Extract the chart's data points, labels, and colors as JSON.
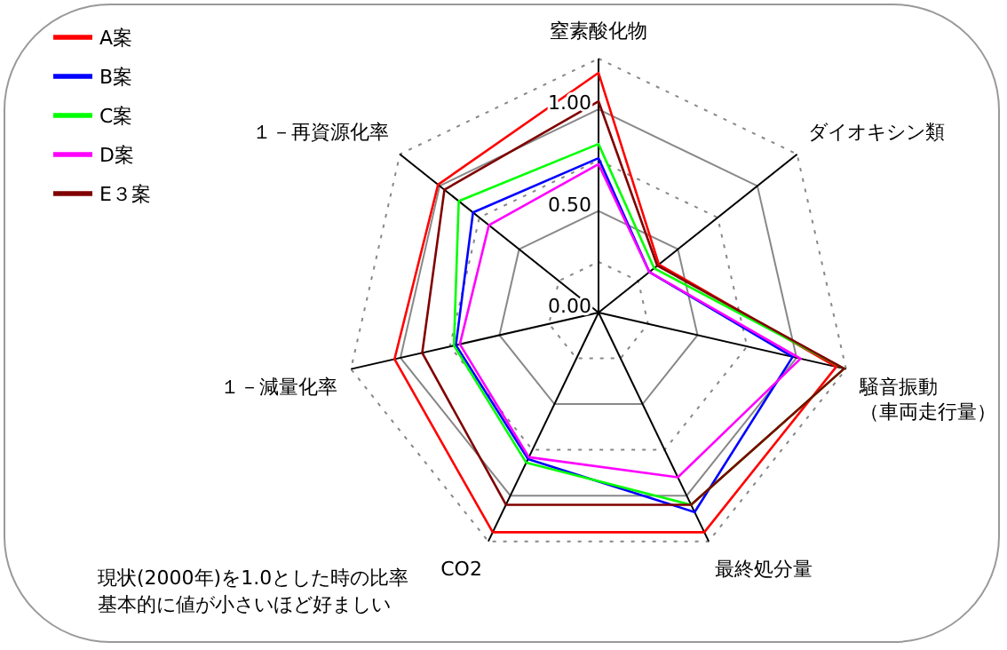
{
  "chart_data": {
    "type": "radar",
    "categories": [
      "窒素酸化物",
      "ダイオキシン類",
      "騒音振動（車両走行量）",
      "最終処分量",
      "CO2",
      "１－減量化率",
      "１－再資源化率"
    ],
    "series": [
      {
        "name": "A案",
        "color": "#ff0000",
        "values": [
          1.18,
          0.38,
          1.2,
          1.2,
          1.2,
          1.03,
          1.01
        ]
      },
      {
        "name": "B案",
        "color": "#0000ff",
        "values": [
          0.76,
          0.32,
          0.98,
          1.09,
          0.8,
          0.72,
          0.79
        ]
      },
      {
        "name": "C案",
        "color": "#00ff00",
        "values": [
          0.83,
          0.35,
          1.24,
          1.05,
          0.82,
          0.73,
          0.88
        ]
      },
      {
        "name": "D案",
        "color": "#ff00ff",
        "values": [
          0.73,
          0.32,
          1.02,
          0.9,
          0.79,
          0.7,
          0.69
        ]
      },
      {
        "name": "E３案",
        "color": "#800000",
        "values": [
          1.04,
          0.37,
          1.24,
          1.05,
          1.05,
          0.89,
          0.97
        ]
      }
    ],
    "ylim": [
      0,
      1.25
    ],
    "yticks": [
      {
        "value": 0,
        "label": "0.00"
      },
      {
        "value": 0.5,
        "label": "0.50"
      },
      {
        "value": 1,
        "label": "1.00"
      }
    ],
    "grid": true,
    "legend": "top left",
    "marker": "none",
    "line_style": "solid",
    "annotations": [
      "現状(2000年)を1.0とした時の比率",
      "基本的に値が小さいほど好ましい"
    ]
  }
}
